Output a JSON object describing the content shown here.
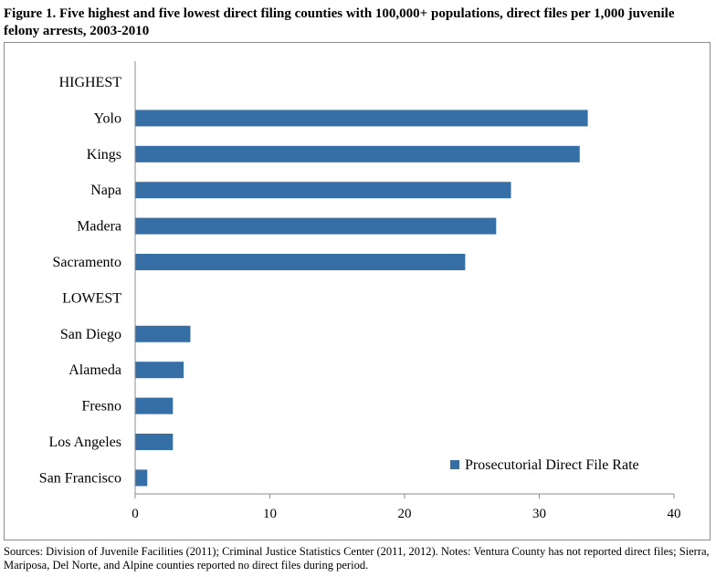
{
  "figure": {
    "title": "Figure 1. Five highest and five lowest direct filing counties with 100,000+ populations, direct files per 1,000 juvenile felony arrests, 2003-2010",
    "sources": "Sources: Division of Juvenile Facilities (2011); Criminal Justice Statistics Center (2011, 2012). Notes: Ventura County has not reported direct files; Sierra, Mariposa, Del Norte, and Alpine counties reported no direct files during period."
  },
  "chart_data": {
    "type": "bar",
    "orientation": "horizontal",
    "categories": [
      "HIGHEST",
      "Yolo",
      "Kings",
      "Napa",
      "Madera",
      "Sacramento",
      "LOWEST",
      "San Diego",
      "Alameda",
      "Fresno",
      "Los Angeles",
      "San Francisco"
    ],
    "series": [
      {
        "name": "Prosecutorial Direct File Rate",
        "color": "#366ea6",
        "values": [
          null,
          33.6,
          33.0,
          27.9,
          26.8,
          24.5,
          null,
          4.1,
          3.6,
          2.8,
          2.8,
          0.9
        ]
      }
    ],
    "xlim": [
      0,
      40
    ],
    "xticks": [
      0,
      10,
      20,
      30,
      40
    ],
    "xtick_labels": [
      "0",
      "10",
      "20",
      "30",
      "40"
    ],
    "grid": false,
    "legend_position": "bottom-right"
  }
}
